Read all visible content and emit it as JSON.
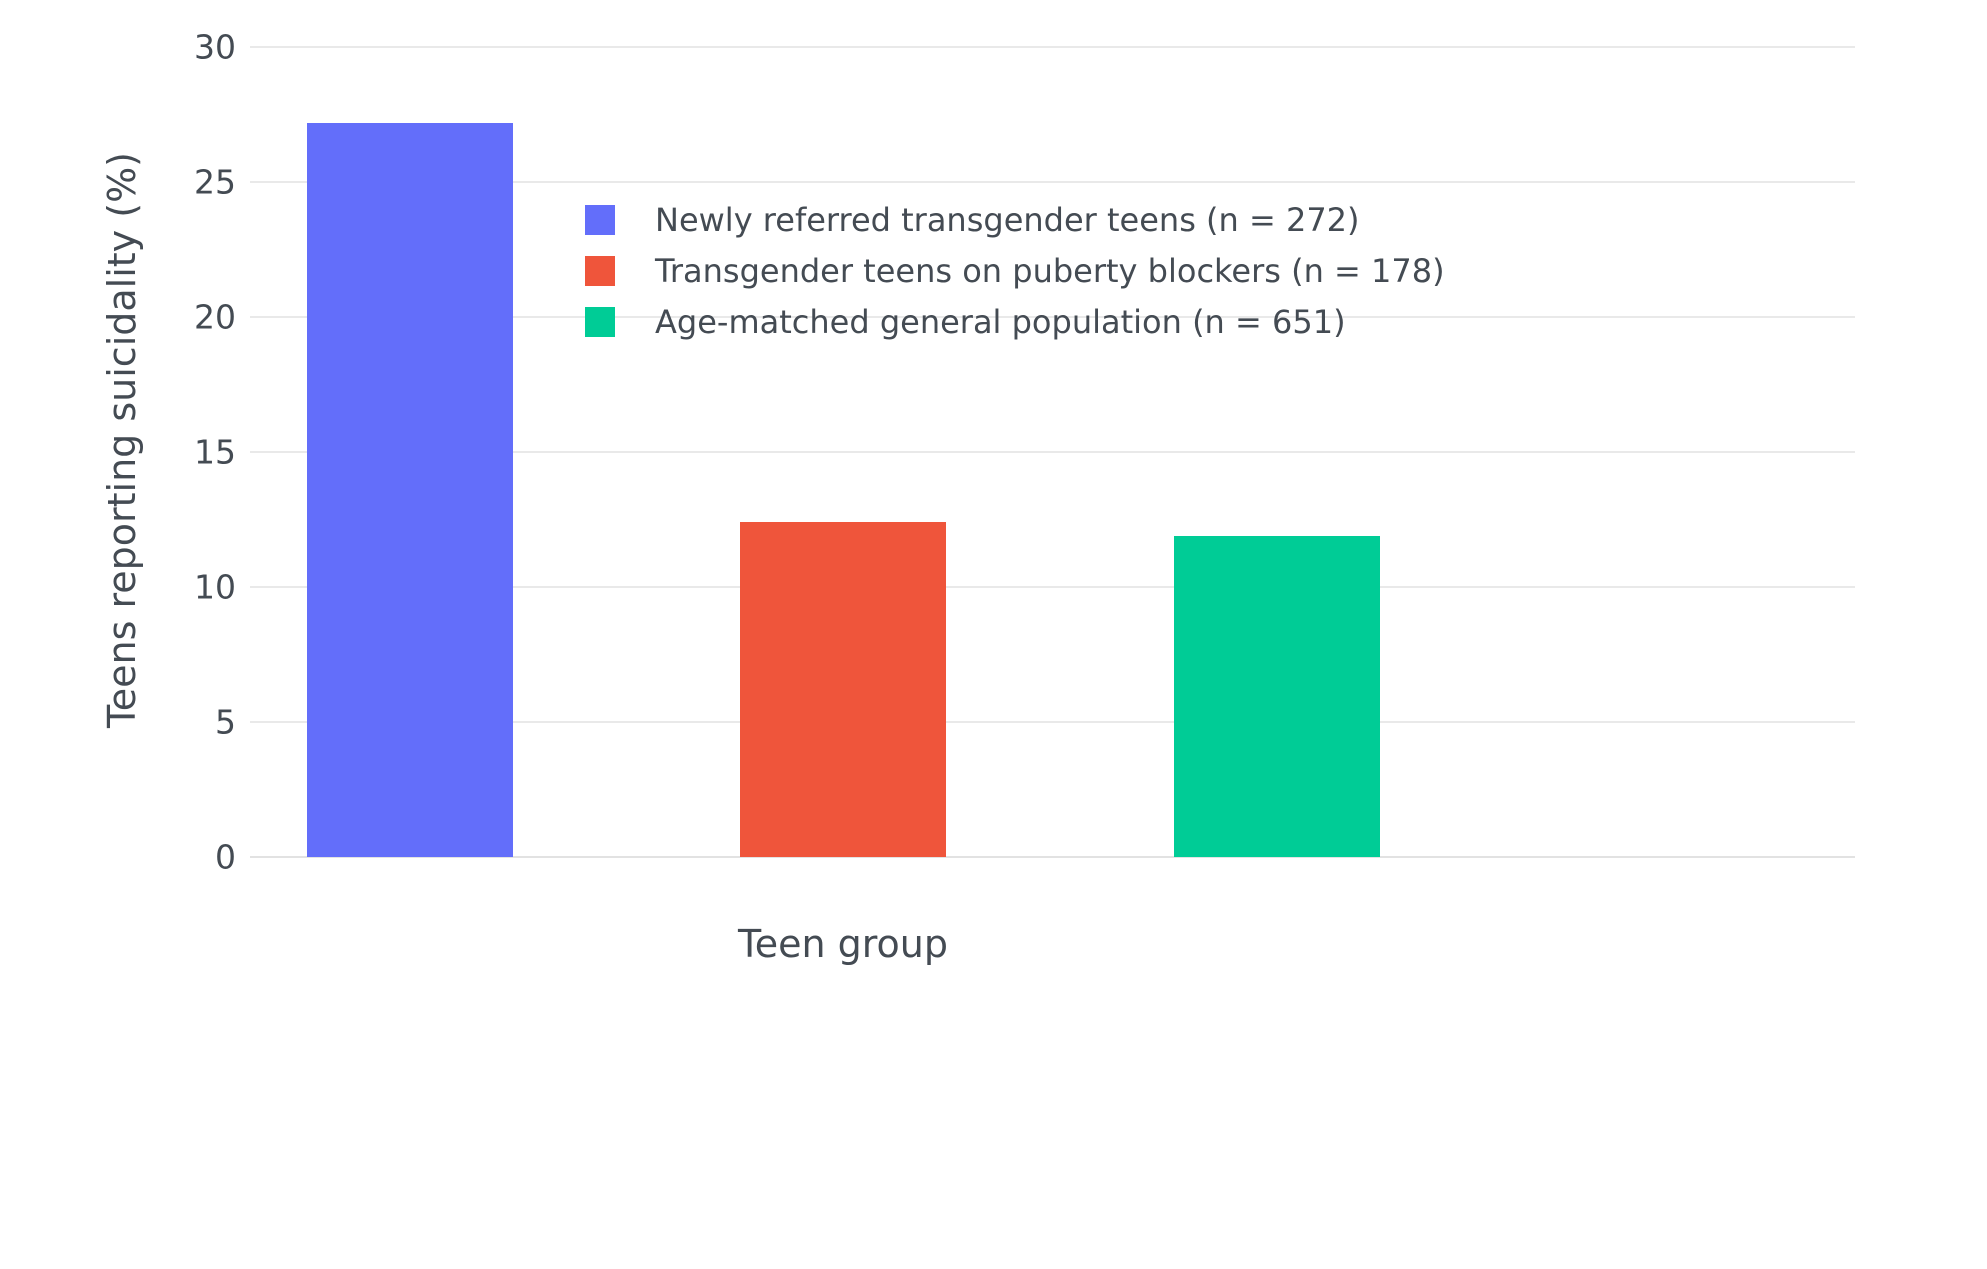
{
  "chart_data": {
    "type": "bar",
    "title": "",
    "xlabel": "Teen group",
    "ylabel": "Teens reporting suicidality (%)",
    "categories": [
      "Newly referred transgender teens (n = 272)",
      "Transgender teens on puberty blockers (n = 178)",
      "Age-matched general population (n = 651)"
    ],
    "values": [
      27.2,
      12.4,
      11.9
    ],
    "colors": [
      "#636efa",
      "#ef553b",
      "#00cc96"
    ],
    "ylim": [
      0,
      30
    ],
    "yticks": [
      0,
      5,
      10,
      15,
      20,
      25,
      30
    ],
    "grid": true,
    "legend": {
      "position": "inside-top-center",
      "items": [
        {
          "label": "Newly referred transgender teens (n = 272)",
          "color": "#636efa"
        },
        {
          "label": "Transgender teens on puberty blockers (n = 178)",
          "color": "#ef553b"
        },
        {
          "label": "Age-matched general population (n = 651)",
          "color": "#00cc96"
        }
      ]
    }
  }
}
